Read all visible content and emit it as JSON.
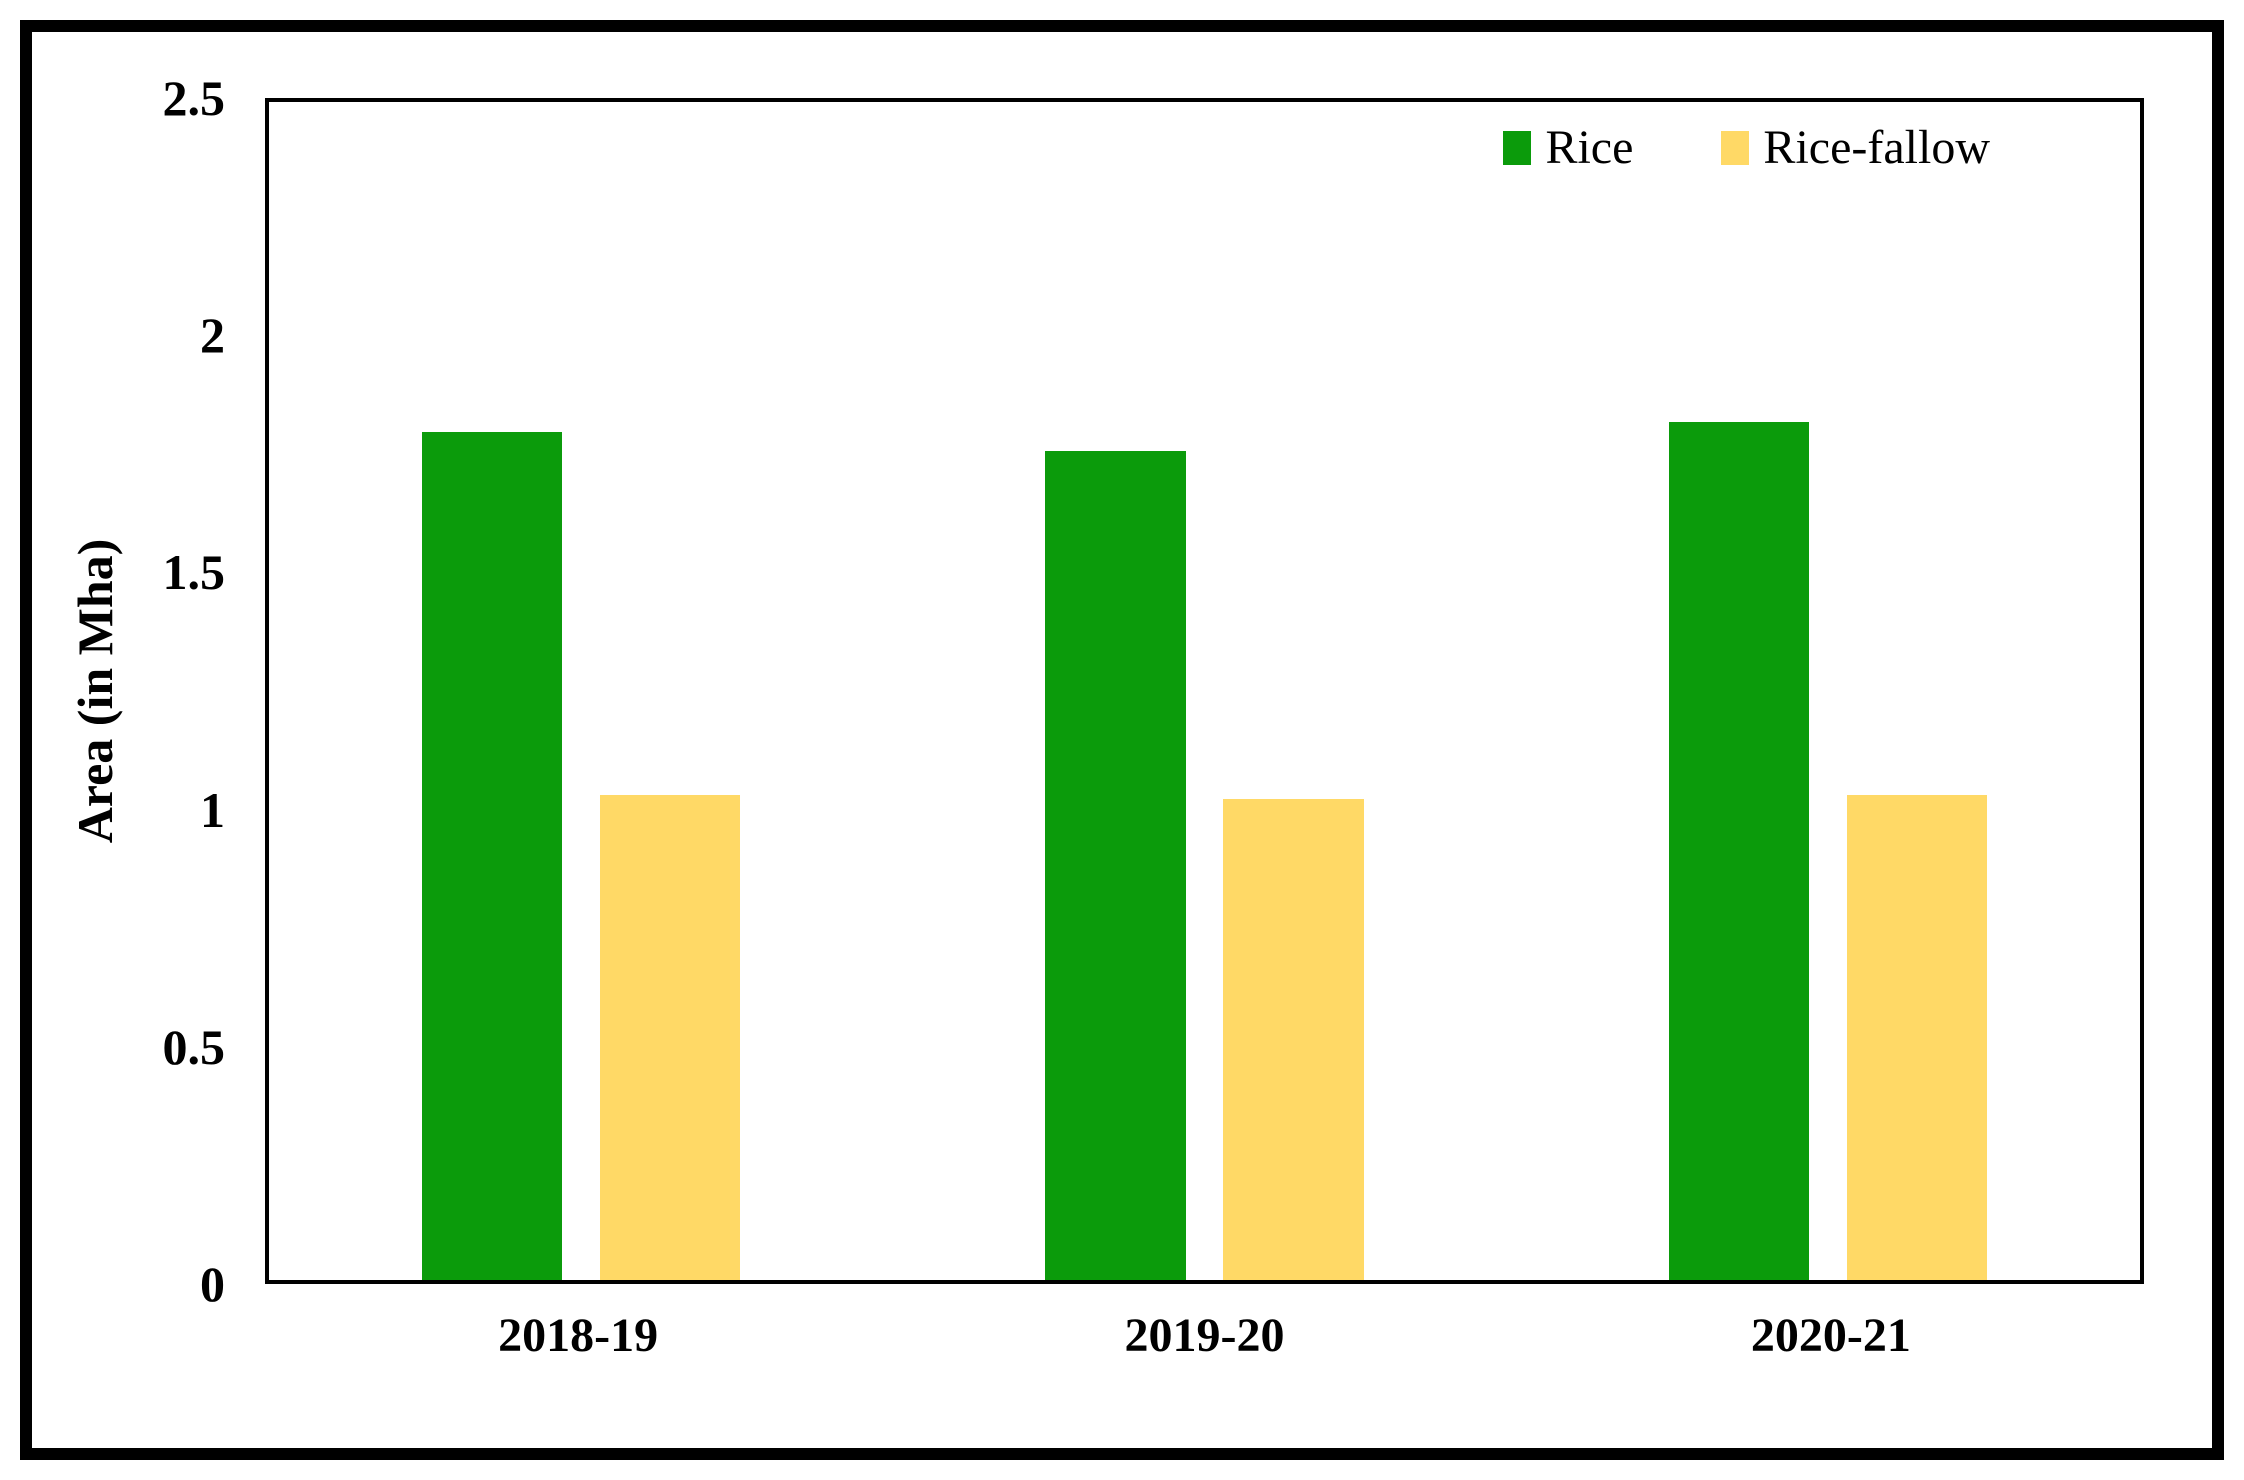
{
  "figure": {
    "background": "#ffffff",
    "frame_color": "#000000"
  },
  "chart_data": {
    "type": "bar",
    "categories": [
      "2018-19",
      "2019-20",
      "2020-21"
    ],
    "series": [
      {
        "name": "Rice",
        "color": "#0B9B0B",
        "values": [
          1.8,
          1.76,
          1.82
        ]
      },
      {
        "name": "Rice-fallow",
        "color": "#FFD966",
        "values": [
          1.03,
          1.02,
          1.03
        ]
      }
    ],
    "title": "",
    "xlabel": "",
    "ylabel": "Area (in Mha)",
    "ylim": [
      0,
      2.5
    ],
    "ytick_values": [
      0,
      0.5,
      1,
      1.5,
      2,
      2.5
    ],
    "ytick_labels": [
      "0",
      "0.5",
      "1",
      "1.5",
      "2",
      "2.5"
    ],
    "grid": false,
    "legend_position": "top-right"
  }
}
